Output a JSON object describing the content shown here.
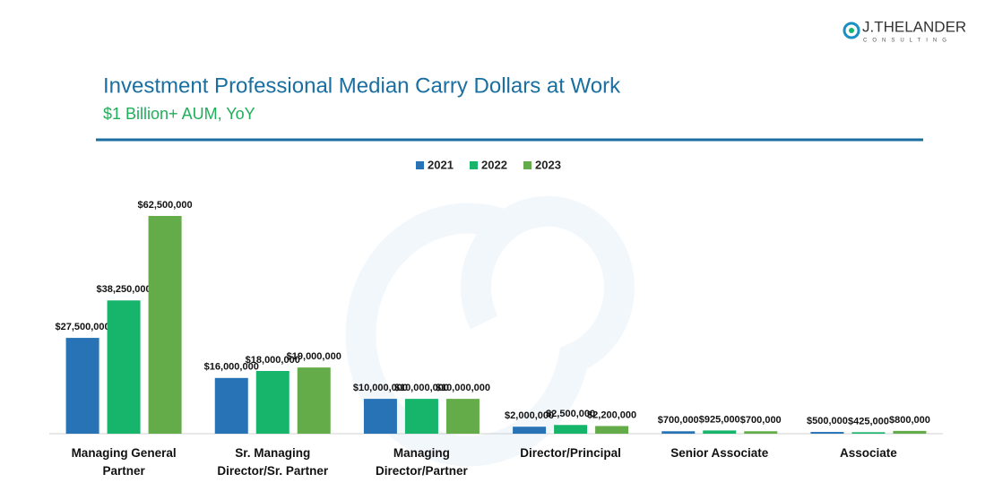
{
  "logo": {
    "name": "J.THELANDER",
    "tagline": "CONSULTING"
  },
  "chart_data": {
    "type": "bar",
    "title": "Investment Professional Median Carry Dollars at Work",
    "subtitle": "$1 Billion+ AUM, YoY",
    "categories": [
      "Managing General Partner",
      "Sr. Managing Director/Sr. Partner",
      "Managing Director/Partner",
      "Director/Principal",
      "Senior Associate",
      "Associate"
    ],
    "legend": "top",
    "series": [
      {
        "name": "2021",
        "color": "#2773b5",
        "values": [
          27500000,
          16000000,
          10000000,
          2000000,
          700000,
          500000
        ],
        "value_labels": [
          "$27,500,000",
          "$16,000,000",
          "$10,000,000",
          "$2,000,000",
          "$700,000",
          "$500,000"
        ]
      },
      {
        "name": "2022",
        "color": "#17b46b",
        "values": [
          38250000,
          18000000,
          10000000,
          2500000,
          925000,
          425000
        ],
        "value_labels": [
          "$38,250,000",
          "$18,000,000",
          "$10,000,000",
          "$2,500,000",
          "$925,000",
          "$425,000"
        ]
      },
      {
        "name": "2023",
        "color": "#64ab4a",
        "values": [
          62500000,
          19000000,
          10000000,
          2200000,
          700000,
          800000
        ],
        "value_labels": [
          "$62,500,000",
          "$19,000,000",
          "$10,000,000",
          "$2,200,000",
          "$700,000",
          "$800,000"
        ]
      }
    ]
  }
}
